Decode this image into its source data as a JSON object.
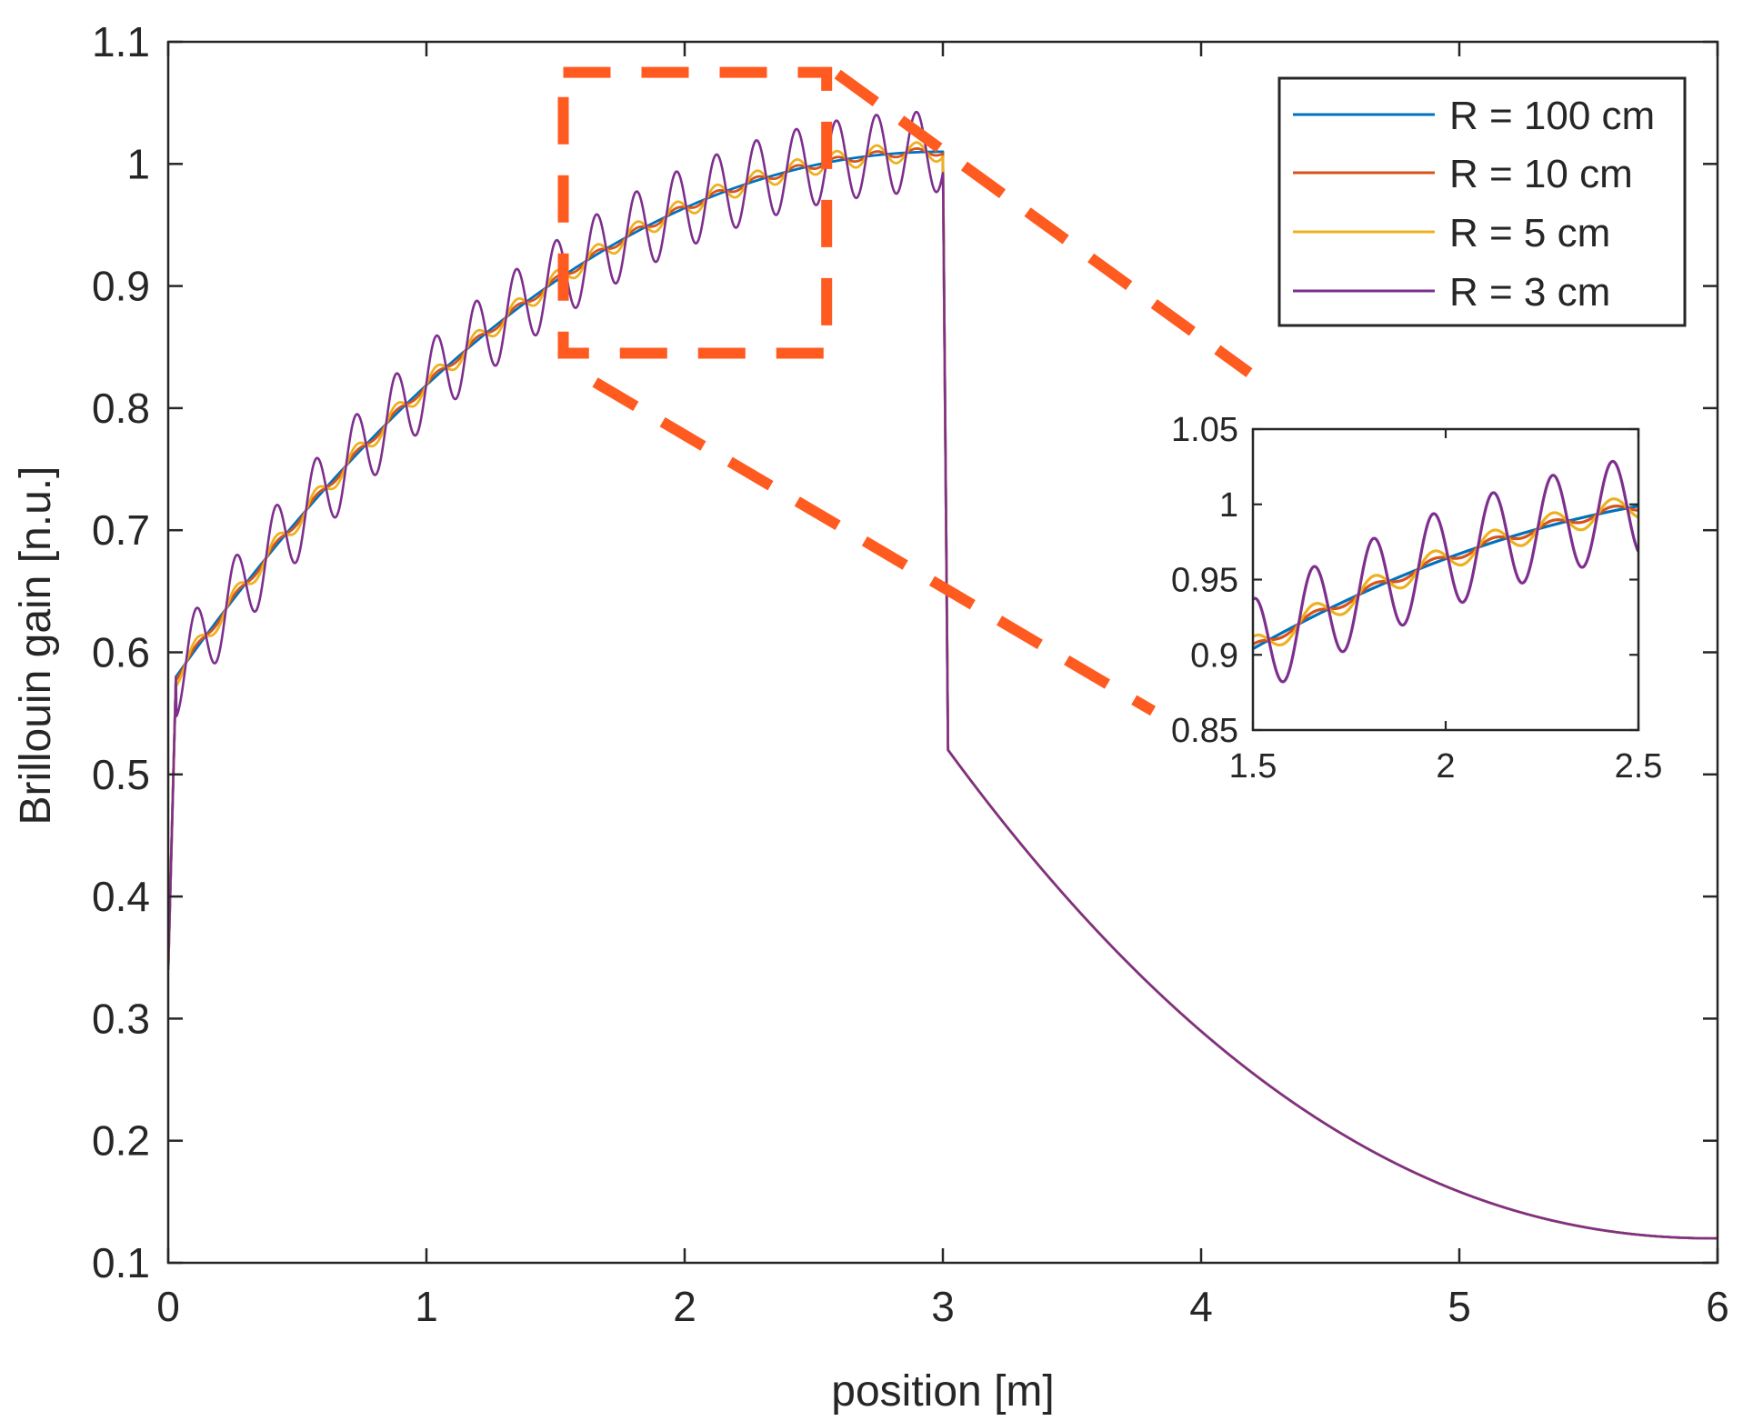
{
  "chart_data": [
    {
      "type": "line",
      "role": "main",
      "title": "",
      "xlabel": "position  [m]",
      "ylabel": "Brillouin gain  [n.u.]",
      "xlim": [
        0,
        6
      ],
      "ylim": [
        0.1,
        1.1
      ],
      "xticks": [
        "0",
        "1",
        "2",
        "3",
        "4",
        "5",
        "6"
      ],
      "yticks": [
        "0.1",
        "0.2",
        "0.3",
        "0.4",
        "0.5",
        "0.6",
        "0.7",
        "0.8",
        "0.9",
        "1",
        "1.1"
      ],
      "grid": false,
      "legend_position": "top-right",
      "zoom_region": {
        "x": [
          1.53,
          2.55
        ],
        "y": [
          0.845,
          1.075
        ]
      },
      "model": {
        "x_start": 0.0,
        "x_end": 6.0,
        "step_position": 3.0,
        "start_value": 0.34,
        "rise_end": 0.58,
        "plateau_end": 1.01,
        "fall_to": 0.52,
        "tail_end": 0.12,
        "ripple_period": 0.155
      },
      "series": [
        {
          "name": "R = 100 cm",
          "color": "#0072BD",
          "ripple_amplitude": 0.0
        },
        {
          "name": "R = 10 cm",
          "color": "#D95319",
          "ripple_amplitude": 0.003
        },
        {
          "name": "R = 5 cm",
          "color": "#EDB120",
          "ripple_amplitude": 0.008
        },
        {
          "name": "R = 3 cm",
          "color": "#7E2F8E",
          "ripple_amplitude": 0.033
        }
      ],
      "key_points": [
        {
          "x": 0.0,
          "y": 0.34
        },
        {
          "x": 0.03,
          "y": 0.58
        },
        {
          "x": 1.0,
          "y": 0.84
        },
        {
          "x": 1.5,
          "y": 0.92
        },
        {
          "x": 2.0,
          "y": 0.963
        },
        {
          "x": 2.5,
          "y": 0.99
        },
        {
          "x": 3.0,
          "y": 1.01
        },
        {
          "x": 3.02,
          "y": 0.52
        },
        {
          "x": 4.0,
          "y": 0.27
        },
        {
          "x": 5.0,
          "y": 0.165
        },
        {
          "x": 6.0,
          "y": 0.12
        }
      ],
      "annotation_color": "#FF5A1F"
    },
    {
      "type": "line",
      "role": "inset",
      "title": "",
      "xlabel": "",
      "ylabel": "",
      "xlim": [
        1.5,
        2.5
      ],
      "ylim": [
        0.85,
        1.05
      ],
      "xticks": [
        "1.5",
        "2",
        "2.5"
      ],
      "yticks": [
        "0.85",
        "0.9",
        "0.95",
        "1",
        "1.05"
      ],
      "grid": false
    }
  ]
}
